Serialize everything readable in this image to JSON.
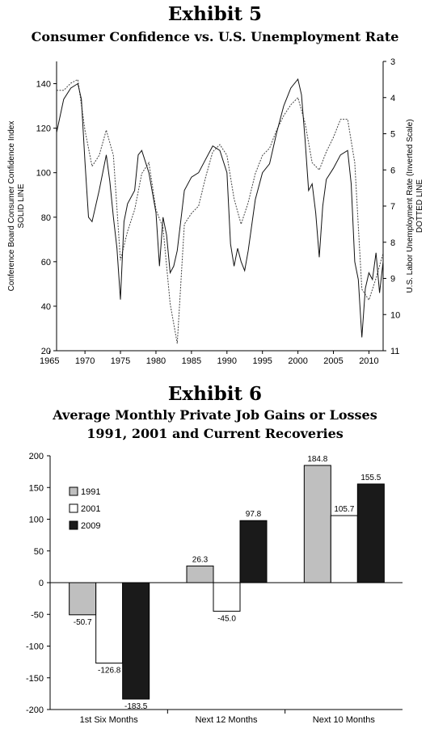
{
  "exhibit5": {
    "title": "Exhibit 5",
    "subtitle": "Consumer Confidence vs. U.S. Unemployment Rate"
  },
  "exhibit6": {
    "title": "Exhibit 6",
    "subtitle_line1": "Average Monthly Private Job Gains or Losses",
    "subtitle_line2": "1991, 2001 and Current Recoveries"
  },
  "chart_data": [
    {
      "type": "line",
      "title": "Consumer Confidence vs. U.S. Unemployment Rate",
      "xlim": [
        1966,
        2012
      ],
      "x_ticks": [
        "1965",
        "1970",
        "1975",
        "1980",
        "1985",
        "1990",
        "1995",
        "2000",
        "2005",
        "2010"
      ],
      "ylabel": "Conference Board Consumer Confidence Index",
      "ylabel_sub": "SOLID LINE",
      "ylim": [
        20,
        150
      ],
      "y_ticks": [
        "20",
        "40",
        "60",
        "80",
        "100",
        "120",
        "140"
      ],
      "y2label": "U.S. Labor Unemployment Rate (Inverted Scale)",
      "y2label_sub": "DOTTED LINE",
      "y2lim": [
        11,
        3
      ],
      "y2_inverted": true,
      "y2_ticks": [
        "3",
        "4",
        "5",
        "6",
        "7",
        "8",
        "9",
        "10",
        "11"
      ],
      "series": [
        {
          "role": "solid",
          "axis": "left",
          "x": [
            1966.0,
            1967.0,
            1968.0,
            1969.0,
            1969.5,
            1970.0,
            1970.5,
            1971.0,
            1972.0,
            1973.0,
            1973.5,
            1974.0,
            1974.5,
            1975.0,
            1975.5,
            1976.0,
            1977.0,
            1977.5,
            1978.0,
            1979.0,
            1980.0,
            1980.5,
            1981.0,
            1981.5,
            1982.0,
            1982.5,
            1983.0,
            1984.0,
            1985.0,
            1986.0,
            1987.0,
            1988.0,
            1989.0,
            1990.0,
            1990.5,
            1991.0,
            1991.5,
            1992.0,
            1992.5,
            1993.0,
            1994.0,
            1995.0,
            1996.0,
            1997.0,
            1998.0,
            1999.0,
            2000.0,
            2000.5,
            2001.0,
            2001.5,
            2002.0,
            2002.5,
            2003.0,
            2003.5,
            2004.0,
            2005.0,
            2006.0,
            2007.0,
            2007.5,
            2008.0,
            2008.5,
            2009.0,
            2009.5,
            2010.0,
            2010.5,
            2011.0,
            2011.5,
            2012.0
          ],
          "y": [
            118,
            133,
            138,
            140,
            133,
            105,
            80,
            78,
            92,
            108,
            96,
            80,
            66,
            43,
            78,
            86,
            92,
            108,
            110,
            100,
            82,
            58,
            80,
            72,
            55,
            58,
            65,
            92,
            98,
            100,
            106,
            112,
            110,
            100,
            68,
            58,
            66,
            60,
            56,
            65,
            88,
            100,
            104,
            118,
            130,
            138,
            142,
            135,
            115,
            92,
            95,
            82,
            62,
            85,
            97,
            102,
            108,
            110,
            95,
            60,
            52,
            26,
            48,
            55,
            52,
            64,
            46,
            60
          ]
        },
        {
          "role": "dotted",
          "axis": "right",
          "x": [
            1966.0,
            1967.0,
            1968.0,
            1969.0,
            1970.0,
            1971.0,
            1972.0,
            1973.0,
            1974.0,
            1975.0,
            1976.0,
            1977.0,
            1978.0,
            1979.0,
            1980.0,
            1981.0,
            1982.0,
            1983.0,
            1984.0,
            1985.0,
            1986.0,
            1987.0,
            1988.0,
            1989.0,
            1990.0,
            1991.0,
            1992.0,
            1993.0,
            1994.0,
            1995.0,
            1996.0,
            1997.0,
            1998.0,
            1999.0,
            2000.0,
            2001.0,
            2002.0,
            2003.0,
            2004.0,
            2005.0,
            2006.0,
            2007.0,
            2008.0,
            2009.0,
            2010.0,
            2011.0,
            2012.0
          ],
          "y": [
            3.8,
            3.8,
            3.6,
            3.5,
            4.9,
            5.9,
            5.6,
            4.9,
            5.6,
            8.5,
            7.7,
            7.1,
            6.1,
            5.8,
            7.1,
            7.6,
            9.7,
            10.8,
            7.5,
            7.2,
            7.0,
            6.2,
            5.5,
            5.3,
            5.6,
            6.8,
            7.5,
            6.9,
            6.1,
            5.6,
            5.4,
            4.9,
            4.5,
            4.2,
            4.0,
            4.7,
            5.8,
            6.0,
            5.5,
            5.1,
            4.6,
            4.6,
            5.8,
            9.3,
            9.6,
            9.0,
            8.3
          ]
        }
      ]
    },
    {
      "type": "bar",
      "title": "Average Monthly Private Job Gains or Losses 1991, 2001 and Current Recoveries",
      "categories": [
        "1st Six Months",
        "Next 12 Months",
        "Next 10 Months"
      ],
      "ylim": [
        -200,
        200
      ],
      "y_ticks": [
        "200",
        "150",
        "100",
        "50",
        "0",
        "-50",
        "-100",
        "-150",
        "-200"
      ],
      "legend_position": "left",
      "series": [
        {
          "name": "1991",
          "color": "#bfbfbf",
          "values": [
            -50.7,
            26.3,
            184.8
          ],
          "labels": [
            "-50.7",
            "26.3",
            "184.8"
          ]
        },
        {
          "name": "2001",
          "color": "#ffffff",
          "values": [
            -126.8,
            -45.0,
            105.7
          ],
          "labels": [
            "-126.8",
            "-45.0",
            "105.7"
          ]
        },
        {
          "name": "2009",
          "color": "#1a1a1a",
          "values": [
            -183.5,
            97.8,
            155.5
          ],
          "labels": [
            "-183.5",
            "97.8",
            "155.5"
          ]
        }
      ]
    }
  ]
}
